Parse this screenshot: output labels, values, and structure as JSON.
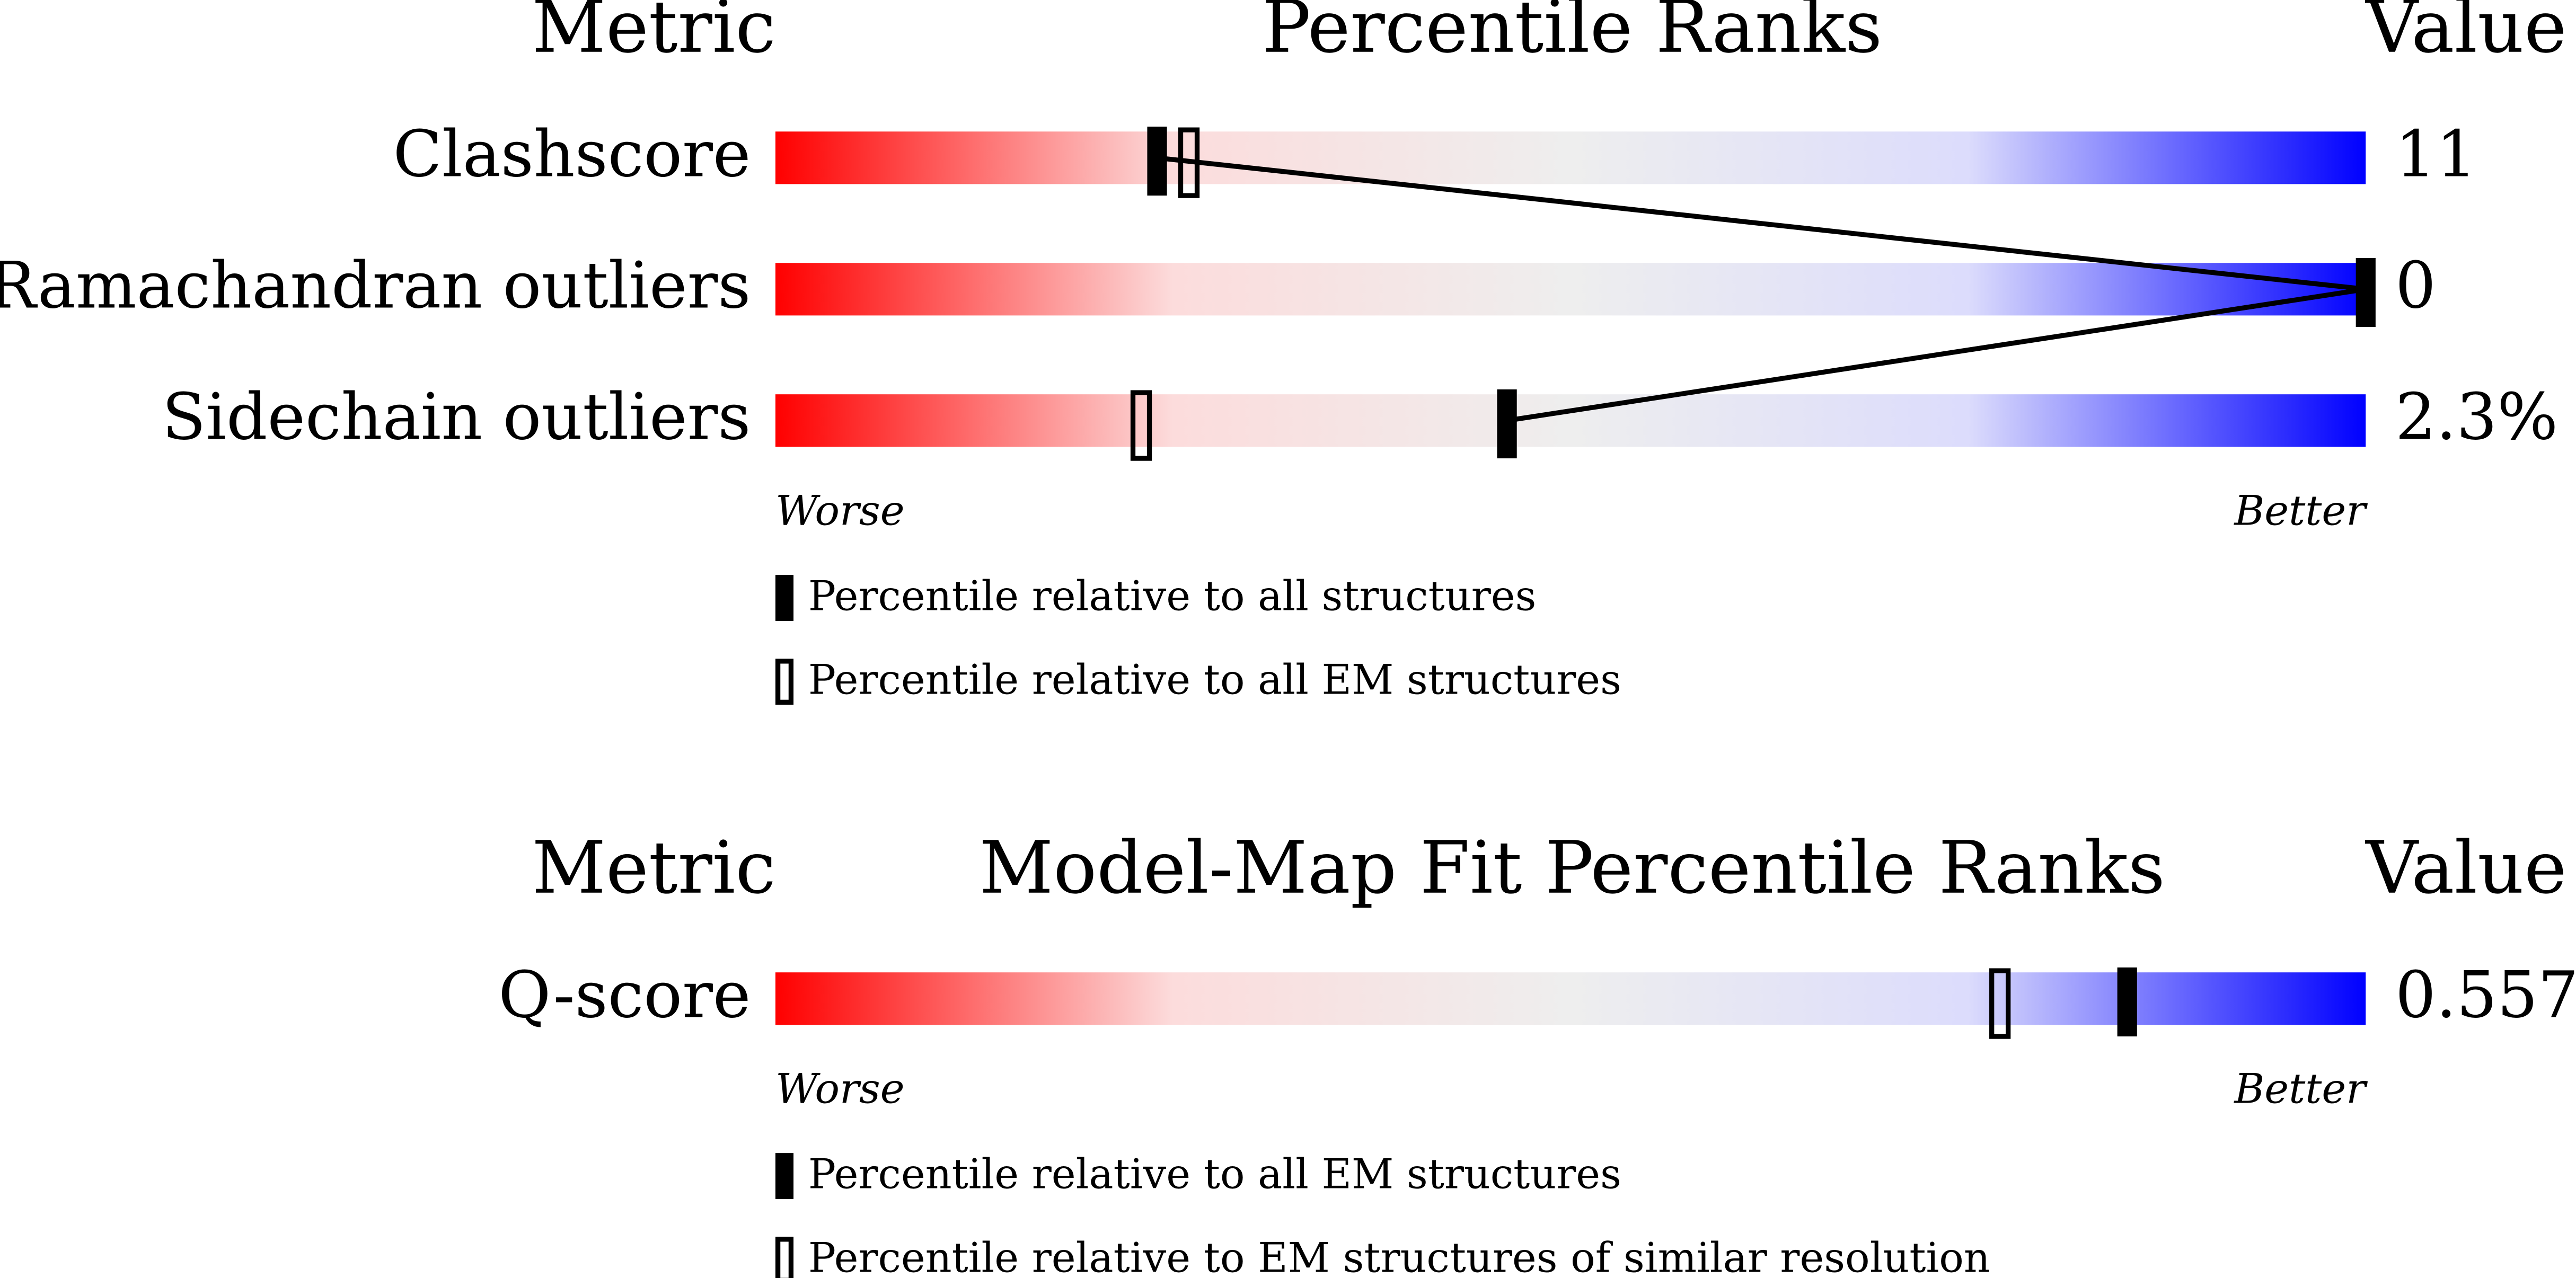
{
  "chart_data": [
    {
      "type": "percentile-slider",
      "metric_header": "Metric",
      "title": "Percentile Ranks",
      "value_header": "Value",
      "categories": [
        "Clashscore",
        "Ramachandran outliers",
        "Sidechain outliers"
      ],
      "metric_values": [
        "11",
        "0",
        "2.3%"
      ],
      "xlim": [
        0,
        100
      ],
      "worse": "Worse",
      "better": "Better",
      "gradient": [
        "#ff0000",
        "#fcdcdc",
        "#eeeeee",
        "#dcdcfc",
        "#0000ff"
      ],
      "connect": true,
      "series": [
        {
          "name": "Percentile relative to all structures",
          "style": "filled",
          "color": "#000000",
          "values": [
            24,
            100,
            46
          ]
        },
        {
          "name": "Percentile relative to all EM structures",
          "style": "open",
          "color": "#000000",
          "values": [
            26,
            null,
            23
          ]
        }
      ]
    },
    {
      "type": "percentile-slider",
      "metric_header": "Metric",
      "title": "Model-Map Fit Percentile Ranks",
      "value_header": "Value",
      "categories": [
        "Q-score"
      ],
      "metric_values": [
        "0.557"
      ],
      "xlim": [
        0,
        100
      ],
      "worse": "Worse",
      "better": "Better",
      "gradient": [
        "#ff0000",
        "#fcdcdc",
        "#eeeeee",
        "#dcdcfc",
        "#0000ff"
      ],
      "connect": true,
      "series": [
        {
          "name": "Percentile relative to all EM structures",
          "style": "filled",
          "color": "#000000",
          "values": [
            85
          ]
        },
        {
          "name": "Percentile relative to EM structures of similar resolution",
          "style": "open",
          "color": "#000000",
          "values": [
            77
          ]
        }
      ]
    }
  ]
}
